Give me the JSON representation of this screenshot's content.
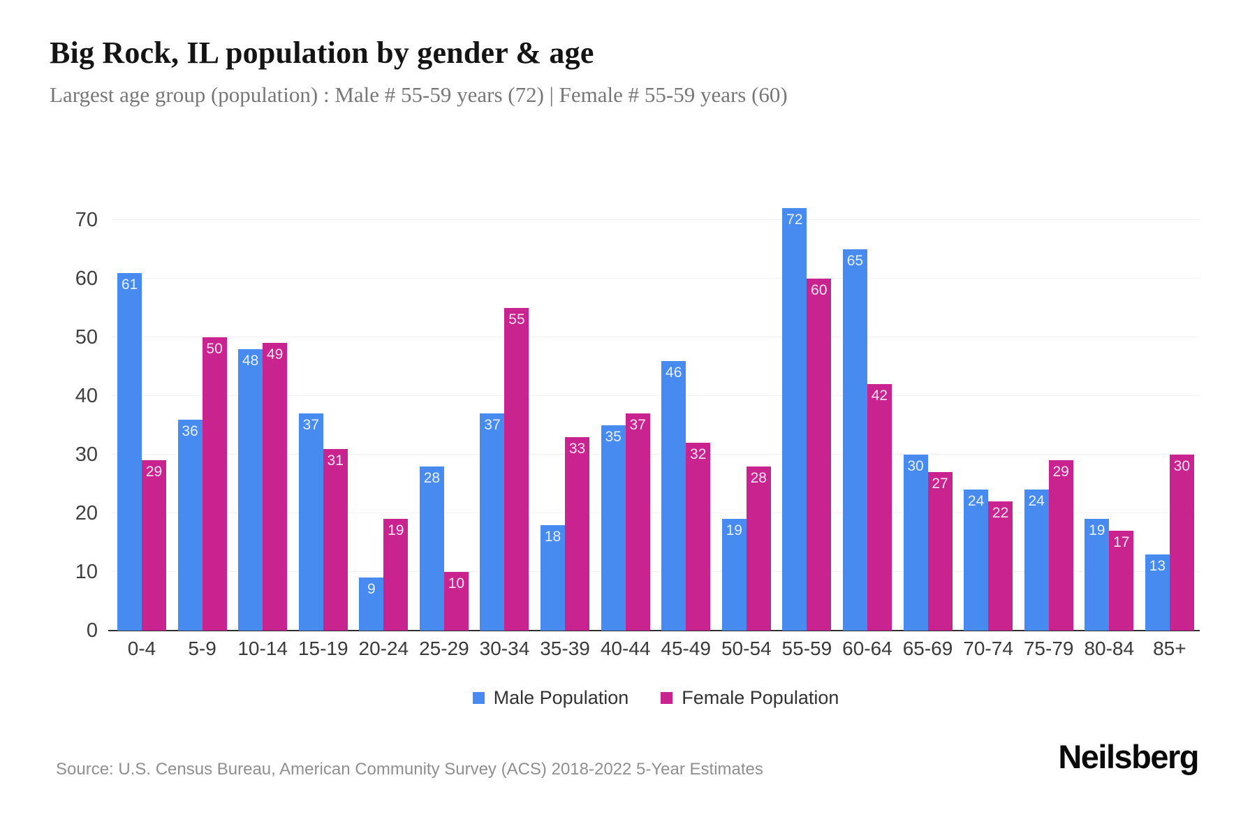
{
  "header": {
    "title": "Big Rock, IL population by gender & age",
    "subtitle": "Largest age group (population) : Male # 55-59 years (72) | Female # 55-59 years (60)"
  },
  "footer": {
    "source": "Source: U.S. Census Bureau, American Community Survey (ACS) 2018-2022 5-Year Estimates",
    "logo": "Neilsberg"
  },
  "colors": {
    "male_bar": "#478bf0",
    "female_bar": "#c9238f",
    "gridline": "#f2f2f2",
    "axis_line": "#2e2e2e",
    "subtitle_text": "#777777",
    "source_text": "#8f8f8f"
  },
  "legend": {
    "position": "bottom-center",
    "items": [
      {
        "label": "Male Population",
        "swatch_color": "#478bf0"
      },
      {
        "label": "Female Population",
        "swatch_color": "#c9238f"
      }
    ]
  },
  "chart_data": {
    "type": "bar",
    "title": "Big Rock, IL population by gender & age",
    "xlabel": "",
    "ylabel": "",
    "categories": [
      "0-4",
      "5-9",
      "10-14",
      "15-19",
      "20-24",
      "25-29",
      "30-34",
      "35-39",
      "40-44",
      "45-49",
      "50-54",
      "55-59",
      "60-64",
      "65-69",
      "70-74",
      "75-79",
      "80-84",
      "85+"
    ],
    "series": [
      {
        "name": "Male Population",
        "color": "#478bf0",
        "values": [
          61,
          36,
          48,
          37,
          9,
          28,
          37,
          18,
          35,
          46,
          19,
          72,
          65,
          30,
          24,
          24,
          19,
          13
        ]
      },
      {
        "name": "Female Population",
        "color": "#c9238f",
        "values": [
          29,
          50,
          49,
          31,
          19,
          10,
          55,
          33,
          37,
          32,
          28,
          60,
          42,
          27,
          22,
          29,
          17,
          30
        ]
      }
    ],
    "yticks": [
      0,
      10,
      20,
      30,
      40,
      50,
      60,
      70
    ],
    "ylim": [
      0,
      70
    ],
    "grid": true,
    "bar_value_labels": "inside-top",
    "legend_position": "bottom"
  }
}
